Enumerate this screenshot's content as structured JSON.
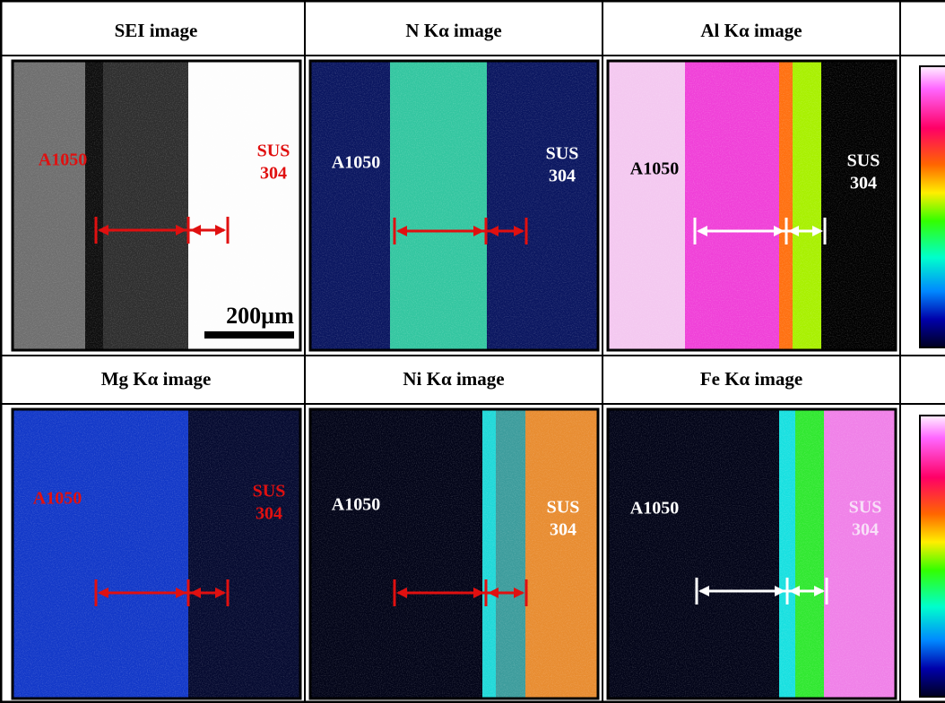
{
  "panels": [
    {
      "title": "SEI image",
      "left_label": "A1050",
      "right_label": [
        "SUS",
        "304"
      ],
      "scale_bar": "200µm"
    },
    {
      "title": "N Kα image",
      "left_label": "A1050",
      "right_label": [
        "SUS",
        "304"
      ]
    },
    {
      "title": "Al Kα image",
      "left_label": "A1050",
      "right_label": [
        "SUS",
        "304"
      ]
    },
    {
      "title": "Mg Kα image",
      "left_label": "A1050",
      "right_label": [
        "SUS",
        "304"
      ]
    },
    {
      "title": "Ni Kα image",
      "left_label": "A1050",
      "right_label": [
        "SUS",
        "304"
      ]
    },
    {
      "title": "Fe Kα image",
      "left_label": "A1050",
      "right_label": [
        "SUS",
        "304"
      ]
    }
  ]
}
